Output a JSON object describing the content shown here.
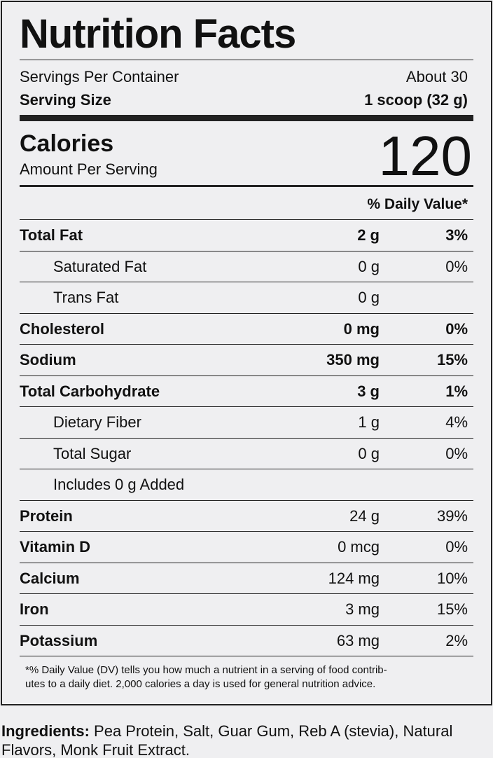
{
  "header": {
    "title": "Nutrition Facts"
  },
  "servings": {
    "label": "Servings Per Container",
    "value": "About 30"
  },
  "serving_size": {
    "label": "Serving Size",
    "value": "1 scoop (32 g)"
  },
  "calories": {
    "label": "Calories",
    "sublabel": "Amount Per Serving",
    "value": "120"
  },
  "dv_header": "% Daily Value*",
  "rows": [
    {
      "name": "Total Fat",
      "amount": "2 g",
      "dv": "3%",
      "emphasis": "all",
      "indent": false
    },
    {
      "name": "Saturated Fat",
      "amount": "0 g",
      "dv": "0%",
      "emphasis": "none",
      "indent": true
    },
    {
      "name": "Trans Fat",
      "amount": "0 g",
      "emphasis": "none",
      "indent": true
    },
    {
      "name": "Cholesterol",
      "amount": "0 mg",
      "dv": "0%",
      "emphasis": "all",
      "indent": false
    },
    {
      "name": "Sodium",
      "amount": "350 mg",
      "dv": "15%",
      "emphasis": "all",
      "indent": false
    },
    {
      "name": "Total Carbohydrate",
      "amount": "3 g",
      "dv": "1%",
      "emphasis": "all",
      "indent": false
    },
    {
      "name": "Dietary Fiber",
      "amount": "1 g",
      "dv": "4%",
      "emphasis": "none",
      "indent": true
    },
    {
      "name": "Total Sugar",
      "amount": "0 g",
      "dv": "0%",
      "emphasis": "none",
      "indent": true
    },
    {
      "name": "Includes 0 g Added",
      "emphasis": "none",
      "indent": true
    },
    {
      "name": "Protein",
      "amount": "24 g",
      "dv": "39%",
      "emphasis": "name",
      "indent": false
    },
    {
      "name": "Vitamin D",
      "amount": "0 mcg",
      "dv": "0%",
      "emphasis": "name",
      "indent": false
    },
    {
      "name": "Calcium",
      "amount": "124 mg",
      "dv": "10%",
      "emphasis": "name",
      "indent": false
    },
    {
      "name": "Iron",
      "amount": "3 mg",
      "dv": "15%",
      "emphasis": "name",
      "indent": false
    },
    {
      "name": "Potassium",
      "amount": "63 mg",
      "dv": "2%",
      "emphasis": "name",
      "indent": false
    }
  ],
  "footnote": [
    "*% Daily Value (DV) tells you how much a nutrient in a serving of food contrib-",
    "utes to a daily diet. 2,000 calories a day is used for general nutrition advice."
  ],
  "ingredients": {
    "label": "Ingredients:",
    "text": "Pea Protein, Salt, Guar Gum, Reb A (stevia), Natural Flavors, Monk Fruit Extract."
  }
}
